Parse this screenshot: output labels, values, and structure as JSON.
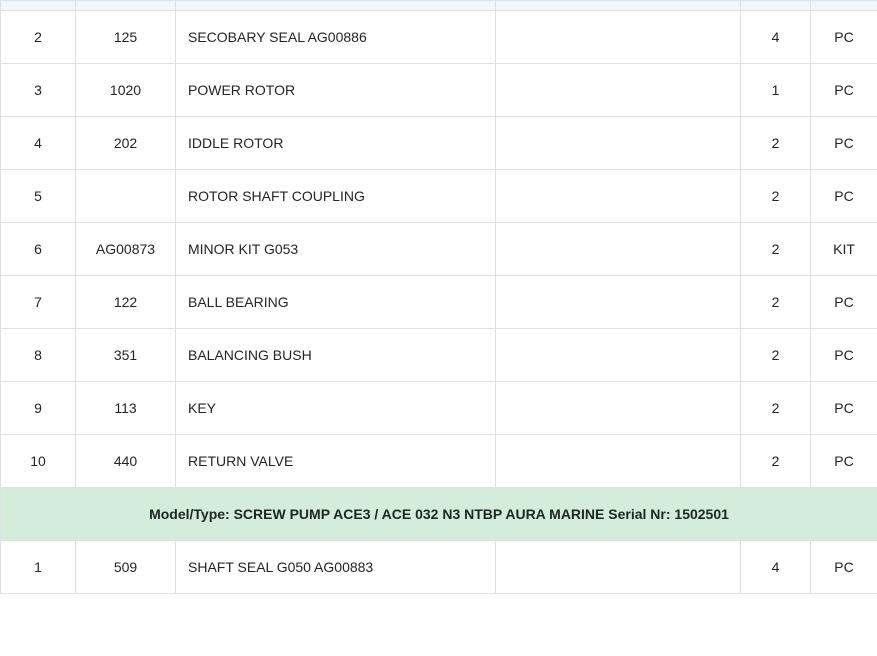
{
  "colors": {
    "header_bg": "#f0f8fc",
    "border": "#dee2e6",
    "section_bg": "#d4edda",
    "text": "#212529"
  },
  "rows": [
    {
      "no": "2",
      "code": "125",
      "desc": "SECOBARY SEAL AG00886",
      "extra": "",
      "qty": "4",
      "unit": "PC"
    },
    {
      "no": "3",
      "code": "1020",
      "desc": "POWER ROTOR",
      "extra": "",
      "qty": "1",
      "unit": "PC"
    },
    {
      "no": "4",
      "code": "202",
      "desc": "IDDLE ROTOR",
      "extra": "",
      "qty": "2",
      "unit": "PC"
    },
    {
      "no": "5",
      "code": "",
      "desc": "ROTOR SHAFT COUPLING",
      "extra": "",
      "qty": "2",
      "unit": "PC"
    },
    {
      "no": "6",
      "code": "AG00873",
      "desc": "MINOR KIT G053",
      "extra": "",
      "qty": "2",
      "unit": "KIT"
    },
    {
      "no": "7",
      "code": "122",
      "desc": "BALL BEARING",
      "extra": "",
      "qty": "2",
      "unit": "PC"
    },
    {
      "no": "8",
      "code": "351",
      "desc": "BALANCING BUSH",
      "extra": "",
      "qty": "2",
      "unit": "PC"
    },
    {
      "no": "9",
      "code": "113",
      "desc": "KEY",
      "extra": "",
      "qty": "2",
      "unit": "PC"
    },
    {
      "no": "10",
      "code": "440",
      "desc": "RETURN VALVE",
      "extra": "",
      "qty": "2",
      "unit": "PC"
    }
  ],
  "section": {
    "label": "Model/Type: SCREW PUMP ACE3 / ACE 032 N3 NTBP AURA MARINE Serial Nr: 1502501"
  },
  "rows2": [
    {
      "no": "1",
      "code": "509",
      "desc": "SHAFT SEAL G050 AG00883",
      "extra": "",
      "qty": "4",
      "unit": "PC"
    }
  ]
}
